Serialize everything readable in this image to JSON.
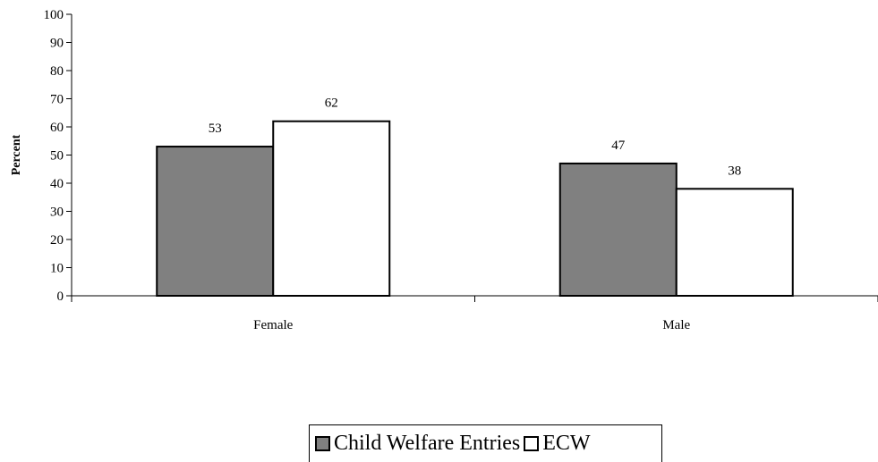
{
  "chart_data": {
    "type": "bar",
    "title": "",
    "xlabel": "",
    "ylabel": "Percent",
    "ylim": [
      0,
      100
    ],
    "yticks": [
      0,
      10,
      20,
      30,
      40,
      50,
      60,
      70,
      80,
      90,
      100
    ],
    "categories": [
      "Female",
      "Male"
    ],
    "series": [
      {
        "name": "Child Welfare Entries",
        "values": [
          53,
          47
        ],
        "color": "#808080"
      },
      {
        "name": "ECW",
        "values": [
          62,
          38
        ],
        "color": "#ffffff"
      }
    ],
    "data_labels": true,
    "grid": false,
    "legend_position": "bottom"
  }
}
